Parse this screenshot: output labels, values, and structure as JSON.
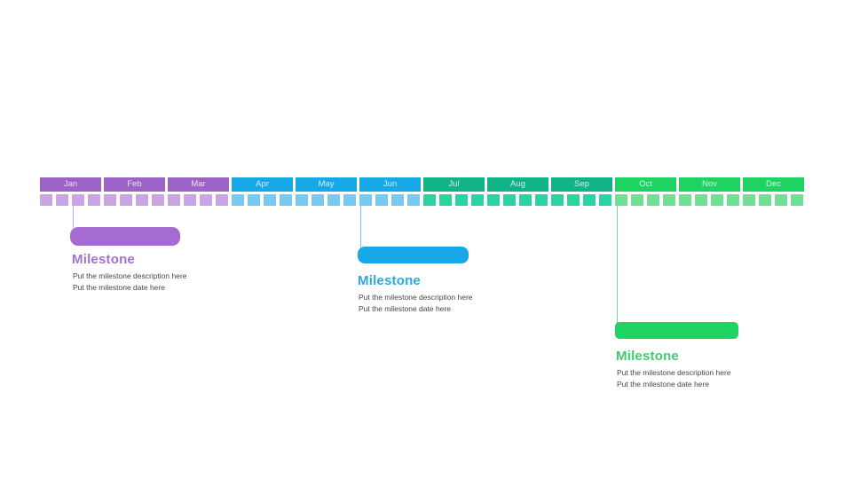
{
  "palette": {
    "q1": {
      "month": "#9B63C5",
      "week": "#C9A5E5",
      "bar": "#A56BD1",
      "title": "#A472CE"
    },
    "q2": {
      "month": "#17A8E8",
      "week": "#74CAF1",
      "bar": "#17A8E8",
      "title": "#2BA9DE"
    },
    "q3": {
      "month": "#12B287",
      "week": "#2AD4A0",
      "bar": "#12B287",
      "title": "#12B287"
    },
    "q4": {
      "month": "#1FD363",
      "week": "#6EE294",
      "bar": "#1FD363",
      "title": "#3ECC71"
    }
  },
  "text_color": "#454545",
  "timeline": {
    "weeks_per_month": 4,
    "months": [
      {
        "label": "Jan",
        "group": "q1"
      },
      {
        "label": "Feb",
        "group": "q1"
      },
      {
        "label": "Mar",
        "group": "q1"
      },
      {
        "label": "Apr",
        "group": "q2"
      },
      {
        "label": "May",
        "group": "q2"
      },
      {
        "label": "Jun",
        "group": "q2"
      },
      {
        "label": "Jul",
        "group": "q3"
      },
      {
        "label": "Aug",
        "group": "q3"
      },
      {
        "label": "Sep",
        "group": "q3"
      },
      {
        "label": "Oct",
        "group": "q4"
      },
      {
        "label": "Nov",
        "group": "q4"
      },
      {
        "label": "Dec",
        "group": "q4"
      }
    ]
  },
  "milestones": [
    {
      "title": "Milestone",
      "description": "Put the milestone description here",
      "date": "Put the milestone date here",
      "group": "q1"
    },
    {
      "title": "Milestone",
      "description": "Put the milestone description here",
      "date": "Put the milestone date here",
      "group": "q2"
    },
    {
      "title": "Milestone",
      "description": "Put the milestone description here",
      "date": "Put the milestone date here",
      "group": "q4"
    }
  ]
}
